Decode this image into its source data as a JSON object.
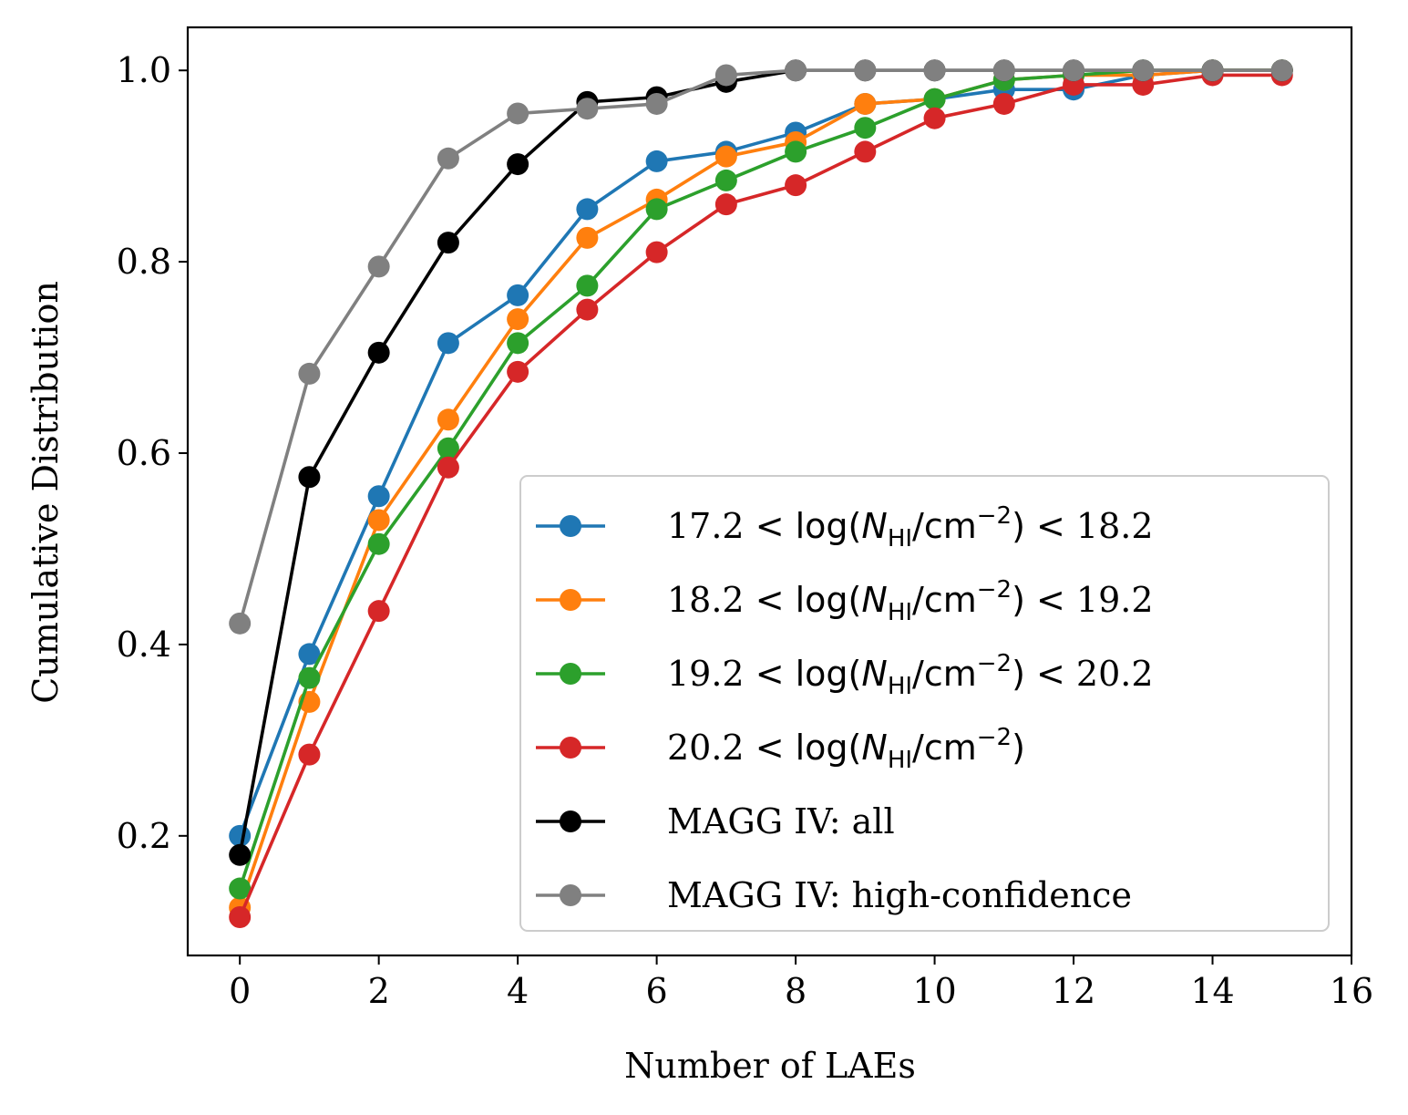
{
  "chart_data": {
    "type": "line",
    "xlabel": "Number of LAEs",
    "ylabel": "Cumulative Distribution",
    "xlim": [
      -0.75,
      16
    ],
    "ylim": [
      0.075,
      1.045
    ],
    "xticks": [
      0,
      2,
      4,
      6,
      8,
      10,
      12,
      14,
      16
    ],
    "yticks": [
      0.2,
      0.4,
      0.6,
      0.8,
      1.0
    ],
    "xtick_labels": [
      "0",
      "2",
      "4",
      "6",
      "8",
      "10",
      "12",
      "14",
      "16"
    ],
    "ytick_labels": [
      "0.2",
      "0.4",
      "0.6",
      "0.8",
      "1.0"
    ],
    "grid": false,
    "legend_position": "lower-right",
    "x": [
      0,
      1,
      2,
      3,
      4,
      5,
      6,
      7,
      8,
      9,
      10,
      11,
      12,
      13,
      14,
      15
    ],
    "series": [
      {
        "name": "17.2 < log(N_HI/cm^-2) < 18.2",
        "label": {
          "lo": "17.2",
          "hi": "18.2"
        },
        "color": "#1f77b4",
        "values": [
          0.2,
          0.39,
          0.555,
          0.715,
          0.765,
          0.855,
          0.905,
          0.915,
          0.935,
          0.965,
          0.97,
          0.98,
          0.98,
          0.995,
          1.0,
          1.0
        ]
      },
      {
        "name": "18.2 < log(N_HI/cm^-2) < 19.2",
        "label": {
          "lo": "18.2",
          "hi": "19.2"
        },
        "color": "#ff7f0e",
        "values": [
          0.125,
          0.34,
          0.53,
          0.635,
          0.74,
          0.825,
          0.865,
          0.91,
          0.925,
          0.965,
          0.97,
          0.99,
          0.995,
          0.995,
          1.0,
          1.0
        ]
      },
      {
        "name": "19.2 < log(N_HI/cm^-2) < 20.2",
        "label": {
          "lo": "19.2",
          "hi": "20.2"
        },
        "color": "#2ca02c",
        "values": [
          0.145,
          0.365,
          0.505,
          0.605,
          0.715,
          0.775,
          0.855,
          0.885,
          0.915,
          0.94,
          0.97,
          0.99,
          0.995,
          1.0,
          1.0,
          1.0
        ]
      },
      {
        "name": "20.2 < log(N_HI/cm^-2)",
        "label": {
          "lo": "20.2",
          "hi": ""
        },
        "color": "#d62728",
        "values": [
          0.115,
          0.285,
          0.435,
          0.585,
          0.685,
          0.75,
          0.81,
          0.86,
          0.88,
          0.915,
          0.95,
          0.965,
          0.985,
          0.985,
          0.995,
          0.995
        ]
      },
      {
        "name": "MAGG IV: all",
        "color": "#000000",
        "values": [
          0.18,
          0.575,
          0.705,
          0.82,
          0.902,
          0.967,
          0.972,
          0.988,
          1.0,
          1.0,
          1.0,
          1.0,
          1.0,
          1.0,
          1.0,
          1.0
        ]
      },
      {
        "name": "MAGG IV: high-confidence",
        "color": "#808080",
        "values": [
          0.422,
          0.683,
          0.795,
          0.908,
          0.955,
          0.96,
          0.965,
          0.995,
          1.0,
          1.0,
          1.0,
          1.0,
          1.0,
          1.0,
          1.0,
          1.0
        ]
      }
    ]
  }
}
